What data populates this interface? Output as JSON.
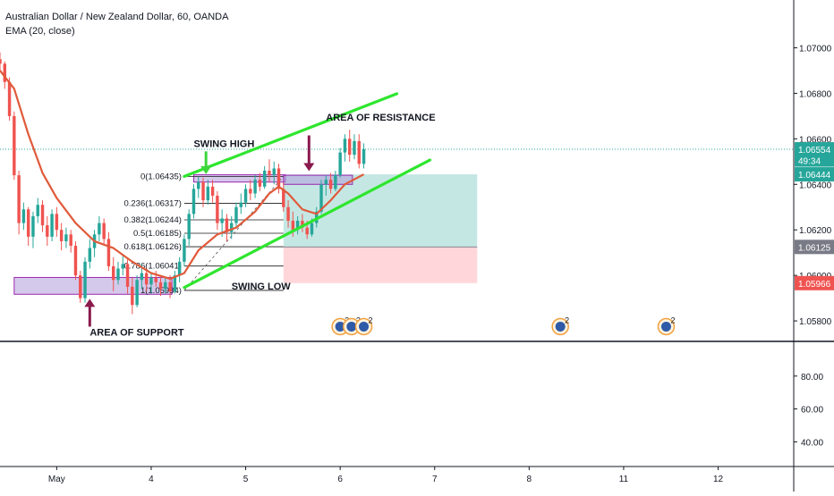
{
  "header": {
    "symbol_title": "Australian Dollar / New Zealand Dollar, 60, OANDA",
    "indicator_title": "EMA (20, close)"
  },
  "colors": {
    "up_candle": "#26a69a",
    "down_candle": "#ef5350",
    "ema_line": "#e05a3a",
    "trend_lines": "#2ee62e",
    "fib_lines": "#1a1a1a",
    "zone_fill": "#b39ddb",
    "zone_border": "#9c27b0",
    "arrow_green": "#3cd63c",
    "arrow_purple": "#8a1a4d",
    "profit_fill": "#b2dfdb",
    "loss_fill": "#ffcdd2",
    "price_last": "#26a69a",
    "price_ema": "#26a69a",
    "price_target": "#787b86",
    "price_stop": "#ef5350"
  },
  "chart_data": {
    "type": "candlestick",
    "title": "Australian Dollar / New Zealand Dollar, 60, OANDA",
    "series": [
      {
        "name": "EMA (20, close)",
        "kind": "line"
      }
    ],
    "price_axis": {
      "ylim": [
        1.0571,
        1.0721
      ],
      "ticks": [
        "1.07000",
        "1.06800",
        "1.06600",
        "1.06400",
        "1.06200",
        "1.06000",
        "1.05800"
      ],
      "tick_values": [
        1.07,
        1.068,
        1.066,
        1.064,
        1.062,
        1.06,
        1.058
      ]
    },
    "indicator_axis": {
      "ylim": [
        25,
        100
      ],
      "ticks": [
        "80.00",
        "60.00",
        "40.00"
      ],
      "tick_values": [
        80,
        60,
        40
      ]
    },
    "x_axis": {
      "labels": [
        "May",
        "4",
        "5",
        "6",
        "7",
        "8",
        "11",
        "12"
      ],
      "label_values": [
        0.6,
        1.6,
        2.6,
        3.6,
        4.6,
        5.6,
        6.6,
        7.6
      ],
      "xlim": [
        0,
        8.4
      ]
    },
    "price_labels": [
      {
        "text": "1.06554",
        "value": 1.06554,
        "style": "last"
      },
      {
        "text": "49:34",
        "value": 1.06505,
        "style": "timer"
      },
      {
        "text": "1.06444",
        "value": 1.06444,
        "style": "ema"
      },
      {
        "text": "1.06125",
        "value": 1.06125,
        "style": "target"
      },
      {
        "text": "1.05966",
        "value": 1.05966,
        "style": "stop"
      }
    ],
    "current_price": 1.06554,
    "fibonacci": {
      "levels": [
        {
          "label": "0(1.06435)",
          "value": 1.06435
        },
        {
          "label": "0.236(1.06317)",
          "value": 1.06317
        },
        {
          "label": "0.382(1.06244)",
          "value": 1.06244
        },
        {
          "label": "0.5(1.06185)",
          "value": 1.06185
        },
        {
          "label": "0.618(1.06126)",
          "value": 1.06126
        },
        {
          "label": "0.786(1.06041)",
          "value": 1.06041
        },
        {
          "label": "1(1.05934)",
          "value": 1.05934
        }
      ],
      "x_start": 1.95,
      "x_end": 3.0
    },
    "trend_lines": [
      {
        "from": [
          1.95,
          1.06435
        ],
        "to": [
          4.2,
          1.06798
        ]
      },
      {
        "from": [
          1.95,
          1.05947
        ],
        "to": [
          4.55,
          1.06507
        ]
      }
    ],
    "zones": [
      {
        "label": "AREA OF SUPPORT",
        "x": [
          0.15,
          1.82
        ],
        "y": [
          1.05917,
          1.05991
        ]
      },
      {
        "label": "",
        "x": [
          2.05,
          3.02
        ],
        "y": [
          1.0641,
          1.06442
        ]
      },
      {
        "label": "",
        "x": [
          3.0,
          3.73
        ],
        "y": [
          1.064,
          1.0644
        ]
      }
    ],
    "position_tool": {
      "entry": 1.06444,
      "target": 1.06125,
      "stop": 1.05966,
      "x": [
        3.0,
        5.05
      ]
    },
    "annotations": [
      {
        "text": "SWING HIGH",
        "at": [
          2.05,
          1.06565
        ]
      },
      {
        "text": "AREA OF RESISTANCE",
        "at": [
          3.45,
          1.0668
        ]
      },
      {
        "text": "SWING LOW",
        "at": [
          2.45,
          1.05937
        ]
      },
      {
        "text": "AREA OF SUPPORT",
        "at": [
          0.95,
          1.05735
        ]
      }
    ],
    "arrows": [
      {
        "direction": "down",
        "color": "green",
        "x": 2.18,
        "y_from": 1.06545,
        "y_to": 1.06445
      },
      {
        "direction": "down",
        "color": "purple",
        "x": 3.27,
        "y_from": 1.06615,
        "y_to": 1.06458
      },
      {
        "direction": "up",
        "color": "purple",
        "x": 0.95,
        "y_from": 1.05775,
        "y_to": 1.05897
      }
    ],
    "events": [
      {
        "x": 3.6,
        "count": "2"
      },
      {
        "x": 3.72,
        "count": "3"
      },
      {
        "x": 3.85,
        "count": "2"
      },
      {
        "x": 5.93,
        "count": "2"
      },
      {
        "x": 7.05,
        "count": "2"
      }
    ],
    "candles": [
      [
        0.0,
        1.0695,
        1.0698,
        1.069,
        1.0693
      ],
      [
        0.05,
        1.0693,
        1.0694,
        1.0682,
        1.0685
      ],
      [
        0.1,
        1.0685,
        1.0687,
        1.0668,
        1.067
      ],
      [
        0.15,
        1.067,
        1.0672,
        1.0642,
        1.0644
      ],
      [
        0.2,
        1.0644,
        1.0646,
        1.0618,
        1.0623
      ],
      [
        0.25,
        1.0623,
        1.0632,
        1.062,
        1.0629
      ],
      [
        0.3,
        1.0629,
        1.063,
        1.0613,
        1.0617
      ],
      [
        0.35,
        1.0617,
        1.0628,
        1.0612,
        1.0626
      ],
      [
        0.4,
        1.0626,
        1.0634,
        1.0623,
        1.0631
      ],
      [
        0.45,
        1.0631,
        1.0633,
        1.0619,
        1.0622
      ],
      [
        0.5,
        1.0622,
        1.0626,
        1.0613,
        1.0617
      ],
      [
        0.55,
        1.0617,
        1.0629,
        1.0615,
        1.0627
      ],
      [
        0.6,
        1.0627,
        1.063,
        1.0617,
        1.062
      ],
      [
        0.65,
        1.062,
        1.0623,
        1.0611,
        1.0615
      ],
      [
        0.7,
        1.0615,
        1.0621,
        1.0612,
        1.0618
      ],
      [
        0.75,
        1.0618,
        1.062,
        1.061,
        1.0613
      ],
      [
        0.8,
        1.0613,
        1.0615,
        1.0598,
        1.06
      ],
      [
        0.85,
        1.06,
        1.0602,
        1.0588,
        1.059
      ],
      [
        0.9,
        1.059,
        1.0608,
        1.0588,
        1.0606
      ],
      [
        0.95,
        1.0606,
        1.0616,
        1.0603,
        1.0612
      ],
      [
        1.0,
        1.0612,
        1.062,
        1.0608,
        1.0618
      ],
      [
        1.05,
        1.0618,
        1.0626,
        1.0615,
        1.0623
      ],
      [
        1.1,
        1.0623,
        1.0625,
        1.0614,
        1.0616
      ],
      [
        1.15,
        1.0616,
        1.0619,
        1.0602,
        1.0604
      ],
      [
        1.2,
        1.0604,
        1.0608,
        1.0593,
        1.0598
      ],
      [
        1.25,
        1.0598,
        1.0606,
        1.0596,
        1.0603
      ],
      [
        1.3,
        1.0603,
        1.0609,
        1.06,
        1.0605
      ],
      [
        1.35,
        1.0605,
        1.0607,
        1.0592,
        1.0595
      ],
      [
        1.4,
        1.0595,
        1.0599,
        1.0583,
        1.0587
      ],
      [
        1.45,
        1.0587,
        1.06,
        1.0586,
        1.0598
      ],
      [
        1.5,
        1.0598,
        1.0605,
        1.0594,
        1.0601
      ],
      [
        1.55,
        1.0601,
        1.0603,
        1.0593,
        1.0596
      ],
      [
        1.6,
        1.0596,
        1.0601,
        1.0592,
        1.0599
      ],
      [
        1.65,
        1.0599,
        1.0602,
        1.0595,
        1.0597
      ],
      [
        1.7,
        1.0597,
        1.06,
        1.0591,
        1.0594
      ],
      [
        1.75,
        1.0594,
        1.0599,
        1.0592,
        1.0597
      ],
      [
        1.8,
        1.0597,
        1.06,
        1.059,
        1.0593
      ],
      [
        1.85,
        1.0593,
        1.0602,
        1.0592,
        1.06
      ],
      [
        1.9,
        1.06,
        1.0608,
        1.0597,
        1.0606
      ],
      [
        1.95,
        1.0606,
        1.0618,
        1.0604,
        1.0616
      ],
      [
        2.0,
        1.0616,
        1.0629,
        1.0613,
        1.0627
      ],
      [
        2.05,
        1.0627,
        1.064,
        1.0625,
        1.0638
      ],
      [
        2.1,
        1.0638,
        1.06435,
        1.0634,
        1.0641
      ],
      [
        2.15,
        1.0641,
        1.0643,
        1.063,
        1.0633
      ],
      [
        2.2,
        1.0633,
        1.0642,
        1.0631,
        1.0639
      ],
      [
        2.25,
        1.0639,
        1.0642,
        1.0632,
        1.0635
      ],
      [
        2.3,
        1.0635,
        1.0637,
        1.062,
        1.0623
      ],
      [
        2.35,
        1.0623,
        1.0629,
        1.0617,
        1.0625
      ],
      [
        2.4,
        1.0625,
        1.0627,
        1.0615,
        1.0619
      ],
      [
        2.45,
        1.0619,
        1.0626,
        1.0616,
        1.0623
      ],
      [
        2.5,
        1.0623,
        1.0632,
        1.0621,
        1.063
      ],
      [
        2.55,
        1.063,
        1.0636,
        1.0627,
        1.0632
      ],
      [
        2.6,
        1.0632,
        1.064,
        1.063,
        1.0638
      ],
      [
        2.65,
        1.0638,
        1.0642,
        1.0633,
        1.0636
      ],
      [
        2.7,
        1.0636,
        1.0644,
        1.0634,
        1.0642
      ],
      [
        2.75,
        1.0642,
        1.0645,
        1.0637,
        1.0639
      ],
      [
        2.8,
        1.0639,
        1.0648,
        1.0638,
        1.0646
      ],
      [
        2.85,
        1.0646,
        1.0651,
        1.0641,
        1.0644
      ],
      [
        2.9,
        1.0644,
        1.065,
        1.064,
        1.0647
      ],
      [
        2.95,
        1.0647,
        1.0649,
        1.0636,
        1.0638
      ],
      [
        3.0,
        1.0638,
        1.0641,
        1.0628,
        1.063
      ],
      [
        3.05,
        1.063,
        1.0633,
        1.0621,
        1.0624
      ],
      [
        3.1,
        1.0624,
        1.0628,
        1.0617,
        1.062
      ],
      [
        3.15,
        1.062,
        1.0626,
        1.0618,
        1.0624
      ],
      [
        3.2,
        1.0624,
        1.0627,
        1.0619,
        1.0621
      ],
      [
        3.25,
        1.0621,
        1.0624,
        1.0616,
        1.0618
      ],
      [
        3.3,
        1.0618,
        1.0625,
        1.0617,
        1.0623
      ],
      [
        3.35,
        1.0623,
        1.063,
        1.0621,
        1.0628
      ],
      [
        3.4,
        1.0628,
        1.0642,
        1.0627,
        1.064
      ],
      [
        3.45,
        1.064,
        1.0644,
        1.0635,
        1.0642
      ],
      [
        3.5,
        1.0642,
        1.0645,
        1.0636,
        1.0638
      ],
      [
        3.55,
        1.0638,
        1.0646,
        1.0637,
        1.0644
      ],
      [
        3.6,
        1.0644,
        1.0656,
        1.0643,
        1.0654
      ],
      [
        3.65,
        1.0654,
        1.0662,
        1.065,
        1.066
      ],
      [
        3.7,
        1.066,
        1.0664,
        1.065,
        1.0653
      ],
      [
        3.75,
        1.0653,
        1.0662,
        1.0651,
        1.0659
      ],
      [
        3.8,
        1.0659,
        1.0662,
        1.0647,
        1.0649
      ],
      [
        3.85,
        1.0649,
        1.0658,
        1.0647,
        1.06554
      ]
    ],
    "ema": [
      [
        0.0,
        1.069
      ],
      [
        0.15,
        1.0682
      ],
      [
        0.3,
        1.0662
      ],
      [
        0.45,
        1.0645
      ],
      [
        0.6,
        1.0634
      ],
      [
        0.8,
        1.0623
      ],
      [
        1.0,
        1.0615
      ],
      [
        1.2,
        1.0612
      ],
      [
        1.4,
        1.0606
      ],
      [
        1.6,
        1.0601
      ],
      [
        1.8,
        1.05985
      ],
      [
        1.95,
        1.0601
      ],
      [
        2.1,
        1.0611
      ],
      [
        2.3,
        1.0618
      ],
      [
        2.5,
        1.0621
      ],
      [
        2.7,
        1.0628
      ],
      [
        2.85,
        1.0636
      ],
      [
        2.95,
        1.0639
      ],
      [
        3.05,
        1.0636
      ],
      [
        3.2,
        1.0629
      ],
      [
        3.35,
        1.0627
      ],
      [
        3.5,
        1.0633
      ],
      [
        3.65,
        1.064
      ],
      [
        3.85,
        1.06444
      ]
    ]
  }
}
